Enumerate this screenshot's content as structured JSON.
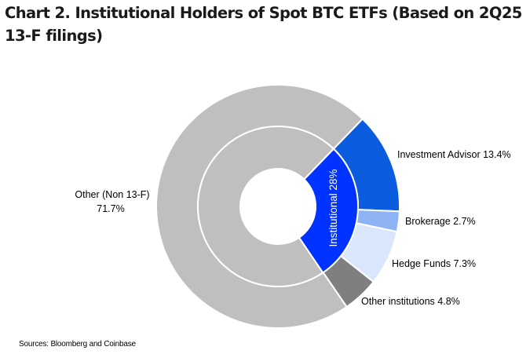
{
  "title": "Chart 2. Institutional Holders of Spot BTC ETFs (Based on 2Q25 13-F filings)",
  "source": "Sources: Bloomberg and Coinbase",
  "chart_data": {
    "type": "pie",
    "subtype": "sunburst (nested donut)",
    "title": "Chart 2. Institutional Holders of Spot BTC ETFs (Based on 2Q25 13-F filings)",
    "start_angle_deg": 44,
    "inner_ring": [
      {
        "label": "Institutional 28%",
        "name": "Institutional",
        "value": 28.3,
        "color": "#0033FF",
        "label_color": "#FFFFFF"
      },
      {
        "label": "",
        "name": "Other (Non 13-F)",
        "value": 71.7,
        "color": "#BFBFBF"
      }
    ],
    "outer_ring": [
      {
        "label": "Investment Advisor 13.4%",
        "name": "Investment Advisor",
        "value": 13.4,
        "color": "#0B5CDE"
      },
      {
        "label": "Brokerage 2.7%",
        "name": "Brokerage",
        "value": 2.7,
        "color": "#8FB4F6"
      },
      {
        "label": "Hedge Funds 7.3%",
        "name": "Hedge Funds",
        "value": 7.3,
        "color": "#DAE6FC"
      },
      {
        "label": "Other institutions 4.8%",
        "name": "Other institutions",
        "value": 4.8,
        "color": "#7F7F7F"
      },
      {
        "label": "Other (Non 13-F) 71.7%",
        "name": "Other (Non 13-F)",
        "value": 71.7,
        "color": "#BFBFBF"
      }
    ],
    "labels": {
      "other_line1": "Other (Non 13-F)",
      "other_line2": "71.7%",
      "investment_advisor": "Investment Advisor 13.4%",
      "brokerage": "Brokerage 2.7%",
      "hedge_funds": "Hedge Funds 7.3%",
      "other_institutions": "Other institutions 4.8%",
      "institutional": "Institutional 28%"
    },
    "legend": "none (direct labels)"
  }
}
